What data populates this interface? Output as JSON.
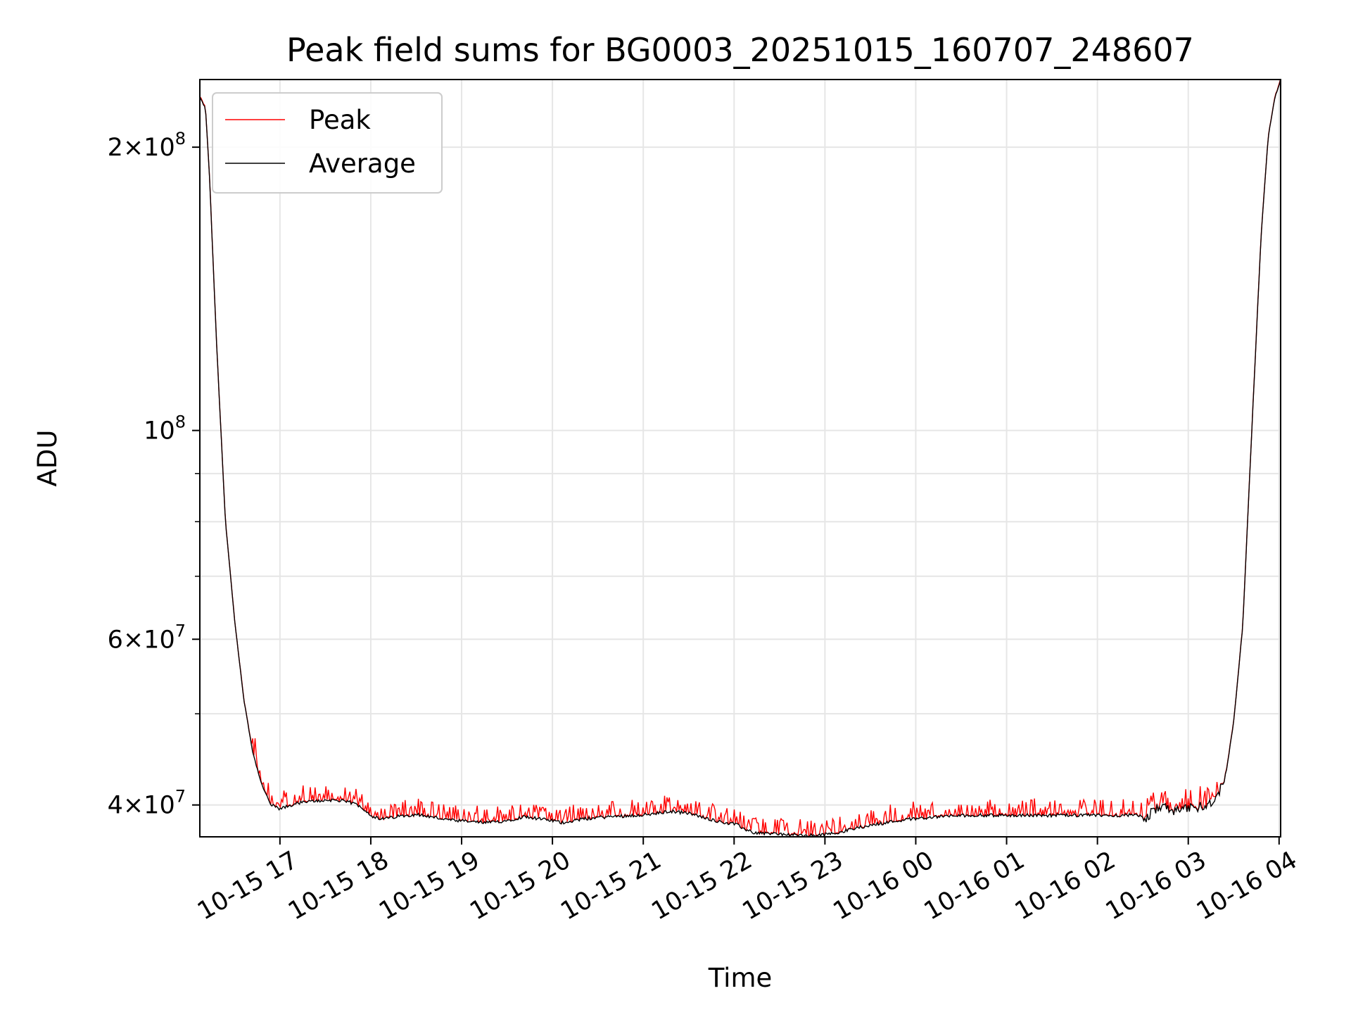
{
  "chart_data": {
    "type": "line",
    "title": "Peak field sums for BG0003_20251015_160707_248607",
    "xlabel": "Time",
    "ylabel": "ADU",
    "yscale": "log",
    "ylim": [
      37000000,
      236000000
    ],
    "xlim_hours": [
      16.118,
      28.017
    ],
    "x_unit": "hours since 10-15 00:00",
    "grid": true,
    "legend_position": "upper-left",
    "x_ticks": [
      {
        "hour": 17,
        "label": "10-15 17"
      },
      {
        "hour": 18,
        "label": "10-15 18"
      },
      {
        "hour": 19,
        "label": "10-15 19"
      },
      {
        "hour": 20,
        "label": "10-15 20"
      },
      {
        "hour": 21,
        "label": "10-15 21"
      },
      {
        "hour": 22,
        "label": "10-15 22"
      },
      {
        "hour": 23,
        "label": "10-15 23"
      },
      {
        "hour": 24,
        "label": "10-16 00"
      },
      {
        "hour": 25,
        "label": "10-16 01"
      },
      {
        "hour": 26,
        "label": "10-16 02"
      },
      {
        "hour": 27,
        "label": "10-16 03"
      },
      {
        "hour": 28,
        "label": "10-16 04"
      }
    ],
    "y_major_ticks": [
      {
        "value": 40000000,
        "mant": "4",
        "exp": "7"
      },
      {
        "value": 60000000,
        "mant": "6",
        "exp": "7"
      },
      {
        "value": 100000000,
        "mant": "",
        "exp": "8"
      },
      {
        "value": 200000000,
        "mant": "2",
        "exp": "8"
      }
    ],
    "y_minor_ticks": [
      50000000,
      70000000,
      80000000,
      90000000
    ],
    "times_symbol": "×",
    "ten": "10",
    "series": [
      {
        "name": "Peak",
        "color": "#ff0000",
        "spike_amplitude": 0.035
      },
      {
        "name": "Average",
        "color": "#000000",
        "points": [
          [
            16.118,
            226000000
          ],
          [
            16.18,
            220000000
          ],
          [
            16.22,
            190000000
          ],
          [
            16.3,
            125000000
          ],
          [
            16.4,
            80000000
          ],
          [
            16.5,
            63000000
          ],
          [
            16.6,
            52000000
          ],
          [
            16.7,
            45500000
          ],
          [
            16.8,
            42000000
          ],
          [
            16.9,
            40000000
          ],
          [
            17.0,
            39600000
          ],
          [
            17.2,
            40200000
          ],
          [
            17.4,
            40400000
          ],
          [
            17.6,
            40500000
          ],
          [
            17.8,
            40200000
          ],
          [
            17.9,
            39800000
          ],
          [
            18.0,
            39000000
          ],
          [
            18.1,
            38600000
          ],
          [
            18.3,
            38900000
          ],
          [
            18.5,
            39100000
          ],
          [
            18.7,
            38800000
          ],
          [
            18.9,
            38500000
          ],
          [
            19.1,
            38400000
          ],
          [
            19.3,
            38300000
          ],
          [
            19.5,
            38500000
          ],
          [
            19.7,
            38900000
          ],
          [
            19.9,
            38600000
          ],
          [
            20.0,
            38500000
          ],
          [
            20.1,
            38300000
          ],
          [
            20.3,
            38600000
          ],
          [
            20.5,
            38800000
          ],
          [
            20.7,
            38900000
          ],
          [
            20.9,
            39000000
          ],
          [
            21.1,
            39100000
          ],
          [
            21.3,
            39400000
          ],
          [
            21.5,
            39200000
          ],
          [
            21.7,
            38700000
          ],
          [
            21.9,
            38300000
          ],
          [
            22.0,
            38200000
          ],
          [
            22.2,
            37400000
          ],
          [
            22.4,
            37300000
          ],
          [
            22.6,
            37200000
          ],
          [
            22.8,
            37100000
          ],
          [
            23.0,
            37200000
          ],
          [
            23.2,
            37500000
          ],
          [
            23.4,
            37900000
          ],
          [
            23.6,
            38200000
          ],
          [
            23.8,
            38500000
          ],
          [
            24.0,
            38700000
          ],
          [
            24.3,
            38900000
          ],
          [
            24.6,
            39000000
          ],
          [
            24.9,
            39000000
          ],
          [
            25.2,
            39000000
          ],
          [
            25.5,
            39000000
          ],
          [
            25.8,
            39000000
          ],
          [
            26.1,
            39000000
          ],
          [
            26.4,
            39000000
          ],
          [
            26.55,
            38800000
          ],
          [
            26.6,
            39300000
          ],
          [
            26.7,
            39900000
          ],
          [
            26.85,
            39400000
          ],
          [
            27.0,
            39600000
          ],
          [
            27.2,
            40000000
          ],
          [
            27.3,
            40600000
          ],
          [
            27.35,
            41500000
          ],
          [
            27.42,
            43500000
          ],
          [
            27.5,
            49000000
          ],
          [
            27.6,
            62000000
          ],
          [
            27.7,
            100000000
          ],
          [
            27.8,
            160000000
          ],
          [
            27.88,
            205000000
          ],
          [
            27.95,
            225000000
          ],
          [
            28.017,
            236000000
          ]
        ]
      }
    ]
  }
}
